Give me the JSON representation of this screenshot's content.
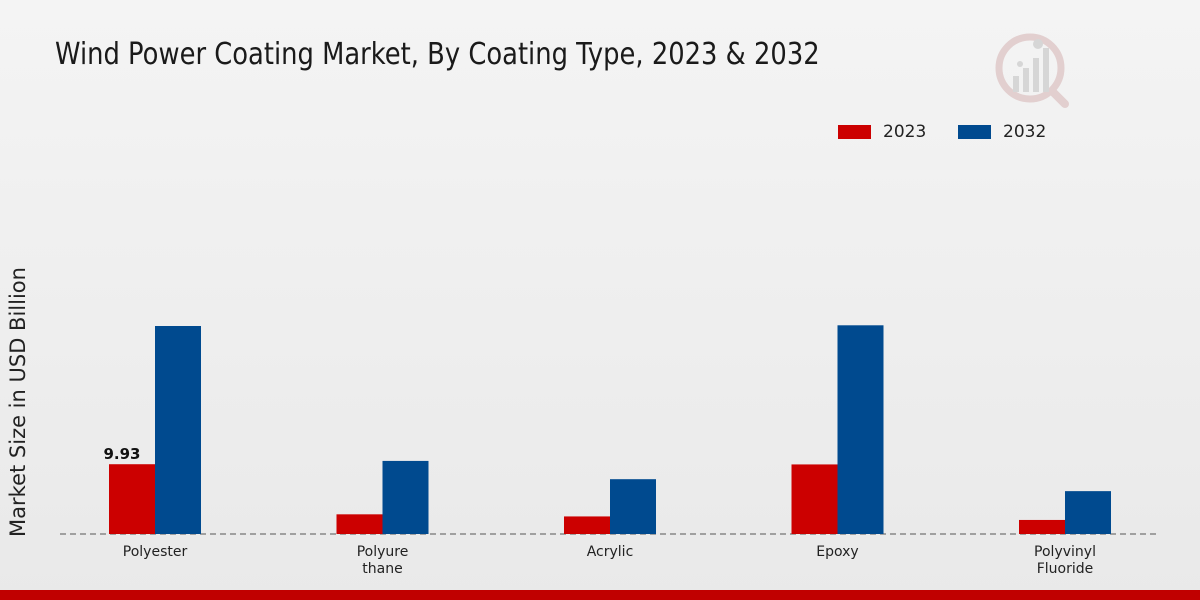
{
  "chart_data": {
    "type": "bar",
    "title": "Wind Power Coating Market, By Coating Type, 2023 & 2032",
    "ylabel": "Market Size in USD Billion",
    "xlabel": "",
    "categories": [
      "Polyester",
      "Polyure\nthane",
      "Acrylic",
      "Epoxy",
      "Polyvinyl\nFluoride"
    ],
    "series": [
      {
        "name": "2023",
        "color": "#cc0000",
        "values": [
          9.93,
          2.8,
          2.5,
          9.9,
          2.0
        ]
      },
      {
        "name": "2032",
        "color": "#004a8f",
        "values": [
          29.6,
          10.4,
          7.8,
          29.7,
          6.1
        ]
      }
    ],
    "data_labels": [
      {
        "series": 0,
        "index": 0,
        "text": "9.93"
      }
    ],
    "ylim": [
      0,
      45
    ],
    "grid": false,
    "legend_position": "top-right"
  },
  "watermark": {
    "icon": "market-research-logo-icon",
    "color": "#d8c4c4"
  }
}
